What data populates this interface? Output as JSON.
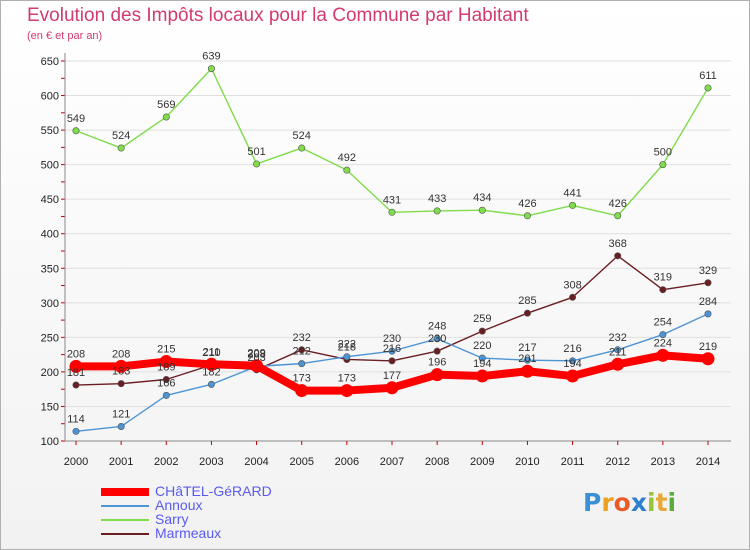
{
  "header": {
    "title": "Evolution des Impôts locaux pour la Commune par Habitant",
    "subtitle": "(en € et par an)"
  },
  "logo": {
    "letters": [
      {
        "char": "P",
        "color": "#3a8fd6"
      },
      {
        "char": "r",
        "color": "#f0a020"
      },
      {
        "char": "o",
        "color": "#e85c2a"
      },
      {
        "char": "x",
        "color": "#2f7fd0"
      },
      {
        "char": "i",
        "color": "#9ac23c"
      },
      {
        "char": "t",
        "color": "#e8a93a"
      },
      {
        "char": "i",
        "color": "#5aaa3c"
      }
    ]
  },
  "chart_data": {
    "type": "line",
    "title": "Evolution des Impôts locaux pour la Commune par Habitant",
    "subtitle": "(en € et par an)",
    "xlabel": "",
    "ylabel": "",
    "categories": [
      "2000",
      "2001",
      "2002",
      "2003",
      "2004",
      "2005",
      "2006",
      "2007",
      "2008",
      "2009",
      "2010",
      "2011",
      "2012",
      "2013",
      "2014"
    ],
    "ylim": [
      100,
      650
    ],
    "yticks": [
      "100",
      "150",
      "200",
      "250",
      "300",
      "350",
      "400",
      "450",
      "500",
      "550",
      "600",
      "650"
    ],
    "grid": "horizontal",
    "legend_position": "bottom-left",
    "series": [
      {
        "name": "CHâTEL-GéRARD",
        "color": "#ff0000",
        "emphasis": true,
        "values": [
          208,
          208,
          215,
          211,
          209,
          173,
          173,
          177,
          196,
          194,
          201,
          194,
          211,
          224,
          219
        ],
        "labels": [
          "208",
          "208",
          "215",
          "211",
          "209",
          "173",
          "173",
          "177",
          "196",
          "194",
          "201",
          "194",
          "211",
          "224",
          "219"
        ]
      },
      {
        "name": "Annoux",
        "color": "#4d94d4",
        "emphasis": false,
        "values": [
          114,
          121,
          166,
          182,
          208,
          212,
          222,
          230,
          248,
          220,
          217,
          216,
          232,
          254,
          284
        ],
        "labels": [
          "114",
          "121",
          "166",
          "182",
          "208",
          "212",
          "222",
          "230",
          "248",
          "220",
          "217",
          "216",
          "232",
          "254",
          "284"
        ]
      },
      {
        "name": "Sarry",
        "color": "#7fdc4a",
        "emphasis": false,
        "values": [
          549,
          524,
          569,
          639,
          501,
          524,
          492,
          431,
          433,
          434,
          426,
          441,
          426,
          500,
          611
        ],
        "labels": [
          "549",
          "524",
          "569",
          "639",
          "501",
          "524",
          "492",
          "431",
          "433",
          "434",
          "426",
          "441",
          "426",
          "500",
          "611"
        ]
      },
      {
        "name": "Marmeaux",
        "color": "#6b1e22",
        "emphasis": false,
        "values": [
          181,
          183,
          189,
          210,
          203,
          232,
          218,
          216,
          230,
          259,
          285,
          308,
          368,
          319,
          329
        ],
        "labels": [
          "181",
          "183",
          "189",
          "210",
          "203",
          "232",
          "218",
          "216",
          "230",
          "259",
          "285",
          "308",
          "368",
          "319",
          "329"
        ]
      }
    ]
  }
}
